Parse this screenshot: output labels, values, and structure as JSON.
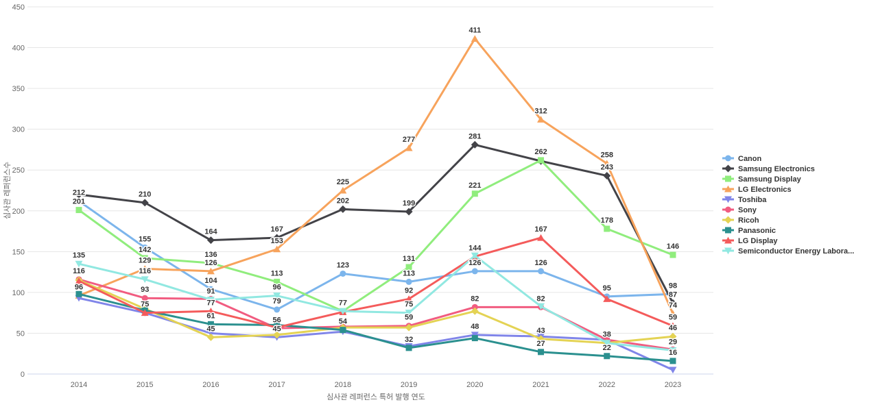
{
  "chart_data": {
    "type": "line",
    "title": "",
    "xlabel": "심사관 레퍼런스 특허 발행 연도",
    "ylabel": "심사관 레퍼런스수",
    "x_ticklabels": [
      "2014",
      "2015",
      "2016",
      "2017",
      "2018",
      "2019",
      "2020",
      "2021",
      "2022",
      "2023"
    ],
    "y_ticks": [
      0,
      50,
      100,
      150,
      200,
      250,
      300,
      350,
      400,
      450
    ],
    "ylim": [
      0,
      450
    ],
    "grid": true,
    "legend_position": "right",
    "axis_line_color": "#ccd6eb",
    "grid_color": "#e6e6e6",
    "tick_label_color": "#666666",
    "data_label_color": "#333333",
    "legend_text_color": "#333333",
    "series": [
      {
        "name": "Canon",
        "color": "#7cb5ec",
        "marker": "circle",
        "values": [
          212,
          155,
          104,
          79,
          123,
          113,
          126,
          126,
          95,
          98
        ],
        "labels": [
          212,
          155,
          104,
          79,
          123,
          113,
          126,
          126,
          95,
          98
        ]
      },
      {
        "name": "Samsung Electronics",
        "color": "#434348",
        "marker": "diamond",
        "values": [
          220,
          210,
          164,
          167,
          202,
          199,
          281,
          261,
          243,
          87
        ],
        "labels": [
          null,
          210,
          164,
          167,
          202,
          199,
          281,
          null,
          243,
          87
        ]
      },
      {
        "name": "Samsung Display",
        "color": "#90ed7d",
        "marker": "square",
        "values": [
          201,
          142,
          136,
          113,
          77,
          131,
          221,
          262,
          178,
          146
        ],
        "labels": [
          201,
          142,
          136,
          113,
          77,
          131,
          221,
          262,
          178,
          146
        ]
      },
      {
        "name": "LG Electronics",
        "color": "#f7a35c",
        "marker": "triangle",
        "values": [
          96,
          129,
          126,
          153,
          225,
          277,
          411,
          312,
          258,
          74
        ],
        "labels": [
          96,
          129,
          126,
          153,
          225,
          277,
          411,
          312,
          258,
          74
        ]
      },
      {
        "name": "Toshiba",
        "color": "#8085e9",
        "marker": "triangle-down",
        "values": [
          93,
          75,
          50,
          45,
          52,
          34,
          48,
          46,
          42,
          5
        ],
        "labels": [
          null,
          null,
          null,
          45,
          null,
          null,
          48,
          null,
          null,
          null
        ]
      },
      {
        "name": "Sony",
        "color": "#f15c80",
        "marker": "circle",
        "values": [
          116,
          93,
          92,
          56,
          58,
          59,
          82,
          82,
          42,
          30
        ],
        "labels": [
          116,
          93,
          null,
          56,
          null,
          59,
          82,
          82,
          null,
          null
        ]
      },
      {
        "name": "Ricoh",
        "color": "#e4d354",
        "marker": "diamond",
        "values": [
          115,
          80,
          45,
          48,
          57,
          57,
          77,
          43,
          38,
          46
        ],
        "labels": [
          null,
          null,
          45,
          null,
          null,
          null,
          null,
          43,
          null,
          46
        ]
      },
      {
        "name": "Panasonic",
        "color": "#2b908f",
        "marker": "square",
        "values": [
          98,
          78,
          61,
          60,
          54,
          32,
          44,
          27,
          22,
          16
        ],
        "labels": [
          null,
          null,
          61,
          null,
          54,
          32,
          null,
          27,
          22,
          16
        ]
      },
      {
        "name": "LG Display",
        "color": "#f45b5b",
        "marker": "triangle",
        "values": [
          114,
          75,
          77,
          57,
          76,
          92,
          144,
          167,
          92,
          59
        ],
        "labels": [
          null,
          75,
          77,
          null,
          null,
          92,
          144,
          167,
          null,
          59
        ]
      },
      {
        "name": "Semiconductor Energy Labora...",
        "color": "#91e8e1",
        "marker": "triangle-down",
        "values": [
          135,
          116,
          91,
          96,
          77,
          75,
          145,
          83,
          38,
          29
        ],
        "labels": [
          135,
          116,
          91,
          96,
          null,
          75,
          null,
          null,
          38,
          29
        ]
      }
    ]
  }
}
